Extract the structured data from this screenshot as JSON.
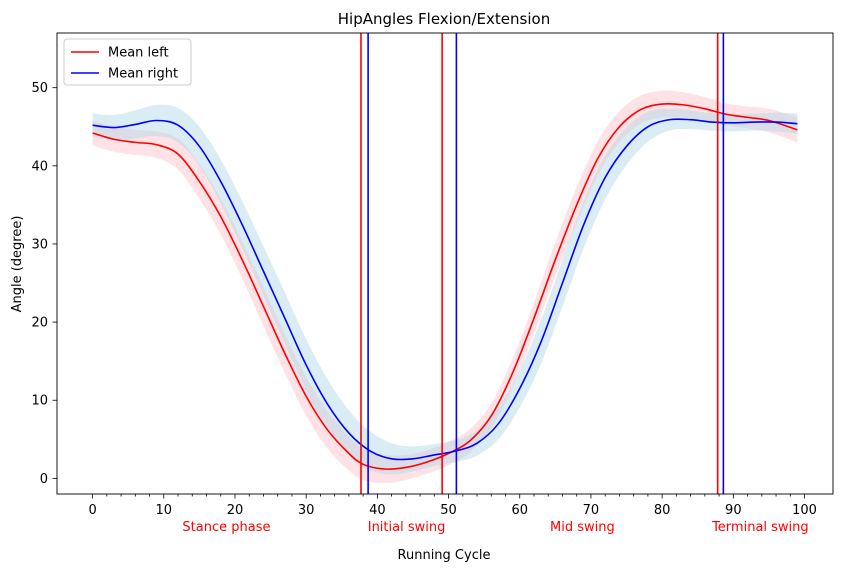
{
  "chart_data": {
    "type": "line",
    "title": "HipAngles Flexion/Extension",
    "xlabel": "Running Cycle",
    "ylabel": "Angle (degree)",
    "xlim": [
      -5,
      104
    ],
    "ylim": [
      -2,
      57
    ],
    "x_major_ticks": [
      0,
      10,
      20,
      30,
      40,
      50,
      60,
      70,
      80,
      90,
      100
    ],
    "x_minor_step": 2,
    "y_ticks": [
      0,
      10,
      20,
      30,
      40,
      50
    ],
    "grid": false,
    "legend_position": "top-left",
    "series": [
      {
        "name": "Mean left",
        "color": "#ff0000",
        "band_color": "#ffb6c1",
        "points": [
          [
            0,
            44.2
          ],
          [
            3,
            43.4
          ],
          [
            6,
            43.0
          ],
          [
            9,
            42.7
          ],
          [
            12,
            41.5
          ],
          [
            15,
            38.0
          ],
          [
            18,
            33.5
          ],
          [
            21,
            28.0
          ],
          [
            24,
            22.0
          ],
          [
            27,
            16.0
          ],
          [
            30,
            10.5
          ],
          [
            33,
            6.2
          ],
          [
            36,
            3.2
          ],
          [
            38,
            1.8
          ],
          [
            41,
            1.2
          ],
          [
            44,
            1.4
          ],
          [
            47,
            2.1
          ],
          [
            50,
            3.2
          ],
          [
            53,
            4.8
          ],
          [
            56,
            8.0
          ],
          [
            59,
            13.5
          ],
          [
            62,
            20.5
          ],
          [
            65,
            28.0
          ],
          [
            68,
            35.0
          ],
          [
            71,
            41.0
          ],
          [
            74,
            45.0
          ],
          [
            77,
            47.2
          ],
          [
            80,
            47.9
          ],
          [
            83,
            47.8
          ],
          [
            86,
            47.3
          ],
          [
            89,
            46.6
          ],
          [
            92,
            46.2
          ],
          [
            95,
            45.8
          ],
          [
            99,
            44.6
          ]
        ],
        "band_half_width": [
          1.6,
          1.6,
          1.6,
          1.7,
          2.0,
          2.2,
          2.3,
          2.4,
          2.5,
          2.5,
          2.5,
          2.4,
          2.2,
          2.0,
          1.8,
          1.6,
          1.5,
          1.5,
          1.5,
          1.6,
          1.8,
          2.0,
          2.2,
          2.3,
          2.2,
          2.0,
          1.8,
          1.7,
          1.6,
          1.5,
          1.4,
          1.4,
          1.5,
          1.6
        ]
      },
      {
        "name": "Mean right",
        "color": "#0000ff",
        "band_color": "#add8e6",
        "points": [
          [
            0,
            45.2
          ],
          [
            3,
            44.9
          ],
          [
            6,
            45.3
          ],
          [
            9,
            45.8
          ],
          [
            12,
            45.2
          ],
          [
            15,
            42.5
          ],
          [
            18,
            38.0
          ],
          [
            21,
            32.5
          ],
          [
            24,
            26.5
          ],
          [
            27,
            20.5
          ],
          [
            30,
            14.5
          ],
          [
            33,
            9.5
          ],
          [
            36,
            5.8
          ],
          [
            39,
            3.5
          ],
          [
            42,
            2.5
          ],
          [
            45,
            2.5
          ],
          [
            48,
            3.0
          ],
          [
            51,
            3.5
          ],
          [
            54,
            4.5
          ],
          [
            57,
            7.0
          ],
          [
            60,
            11.5
          ],
          [
            63,
            17.5
          ],
          [
            66,
            25.0
          ],
          [
            69,
            32.5
          ],
          [
            72,
            38.5
          ],
          [
            75,
            42.5
          ],
          [
            78,
            45.0
          ],
          [
            81,
            45.9
          ],
          [
            84,
            45.9
          ],
          [
            87,
            45.6
          ],
          [
            90,
            45.5
          ],
          [
            93,
            45.6
          ],
          [
            96,
            45.6
          ],
          [
            99,
            45.4
          ]
        ],
        "band_half_width": [
          1.5,
          1.6,
          1.8,
          2.0,
          2.2,
          2.5,
          2.8,
          3.0,
          3.2,
          3.3,
          3.3,
          3.2,
          2.9,
          2.5,
          2.0,
          1.6,
          1.4,
          1.4,
          1.6,
          2.0,
          2.4,
          2.8,
          3.0,
          3.0,
          2.8,
          2.4,
          1.9,
          1.4,
          1.2,
          1.1,
          1.1,
          1.1,
          1.2,
          1.3
        ]
      }
    ],
    "vertical_lines": [
      {
        "x": 37.7,
        "color": "#ff0000"
      },
      {
        "x": 38.7,
        "color": "#0000ff"
      },
      {
        "x": 49.1,
        "color": "#ff0000"
      },
      {
        "x": 51.1,
        "color": "#0000ff"
      },
      {
        "x": 87.8,
        "color": "#ff0000"
      },
      {
        "x": 88.6,
        "color": "#0000ff"
      }
    ],
    "phase_labels": [
      {
        "text": "Stance phase",
        "x": 18.8
      },
      {
        "text": "Initial swing",
        "x": 44.1
      },
      {
        "text": "Mid swing",
        "x": 68.8
      },
      {
        "text": "Terminal swing",
        "x": 93.8
      }
    ],
    "phase_label_color": "#ff0000"
  }
}
